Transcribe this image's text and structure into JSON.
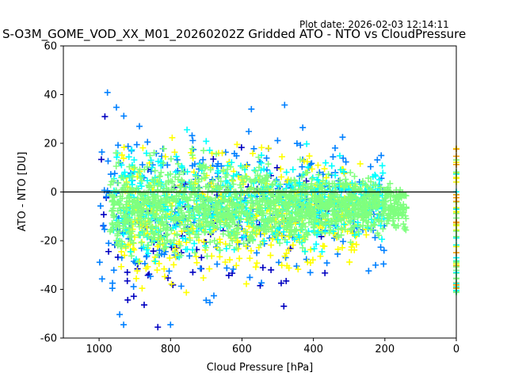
{
  "plot_date": "Plot date: 2026-02-03 12:14:11",
  "chart_data": {
    "type": "scatter",
    "title": "S-O3M_GOME_VOD_XX_M01_20260202Z Gridded ATO - NTO vs CloudPressure",
    "xlabel": "Cloud Pressure [hPa]",
    "ylabel": "ATO - NTO [DU]",
    "xlim": [
      1100,
      0
    ],
    "ylim": [
      -60,
      60
    ],
    "x_inverted": true,
    "x_ticks": [
      1000,
      800,
      600,
      400,
      200,
      0
    ],
    "y_ticks": [
      -60,
      -40,
      -20,
      0,
      20,
      40,
      60
    ],
    "marker": "+",
    "reference_line_y": 0,
    "grid": false,
    "colormap": "jet",
    "color_range_note": "",
    "clusters": [
      {
        "x_range": [
          970,
          140
        ],
        "y_center": -6,
        "y_spread": 22,
        "color": "#7fff7f"
      },
      {
        "x_range": [
          960,
          200
        ],
        "y_center": -4,
        "y_spread": 28,
        "color": "#00ffff"
      },
      {
        "x_range": [
          940,
          250
        ],
        "y_center": -10,
        "y_spread": 35,
        "color": "#ffff00"
      },
      {
        "x_range": [
          1000,
          200
        ],
        "y_center": -5,
        "y_spread": 50,
        "color": "#0080ff"
      },
      {
        "x_range": [
          1000,
          300
        ],
        "y_center": -15,
        "y_spread": 45,
        "color": "#0000c0"
      }
    ],
    "edge_column": {
      "x": 0,
      "y_range": [
        -42,
        18
      ]
    }
  }
}
